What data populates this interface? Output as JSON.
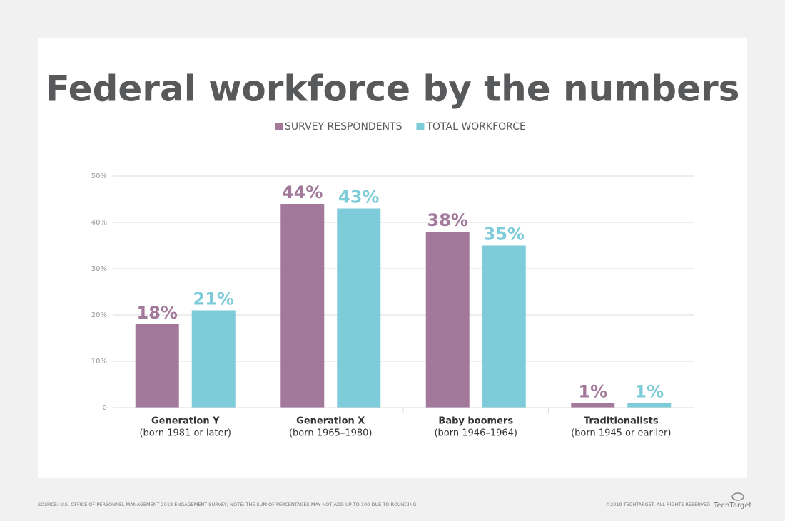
{
  "chart_data": {
    "type": "bar",
    "title": "Federal workforce by the numbers",
    "categories": [
      "Generation Y",
      "Generation X",
      "Baby boomers",
      "Traditionalists"
    ],
    "category_subtitles": [
      "(born 1981 or later)",
      "(born 1965–1980)",
      "(born 1946–1964)",
      "(born 1945 or earlier)"
    ],
    "series": [
      {
        "name": "SURVEY RESPONDENTS",
        "color": "#a3799b",
        "values": [
          18,
          44,
          38,
          1
        ],
        "value_labels": [
          "18%",
          "44%",
          "38%",
          "1%"
        ]
      },
      {
        "name": "TOTAL WORKFORCE",
        "color": "#7ecbd9",
        "values": [
          21,
          43,
          35,
          1
        ],
        "value_labels": [
          "21%",
          "43%",
          "35%",
          "1%"
        ]
      }
    ],
    "ylim": [
      0,
      50
    ],
    "yticks": [
      0,
      {
        "value": 10,
        "label": "10%"
      },
      {
        "value": 20,
        "label": "20%"
      },
      {
        "value": 30,
        "label": "30%"
      },
      {
        "value": 40,
        "label": "40%"
      },
      {
        "value": 50,
        "label": "50%"
      }
    ],
    "grid": true,
    "legend_position": "top",
    "source": "SOURCE: U.S. OFFICE OF PERSONNEL MANAGEMENT 2018 ENGAGEMENT SURVEY; NOTE: THE SUM OF PERCENTAGES MAY NOT ADD UP TO 100 DUE TO ROUNDING",
    "copyright": "©2019 TECHTARGET. ALL RIGHTS RESERVED",
    "logo": "TechTarget"
  }
}
